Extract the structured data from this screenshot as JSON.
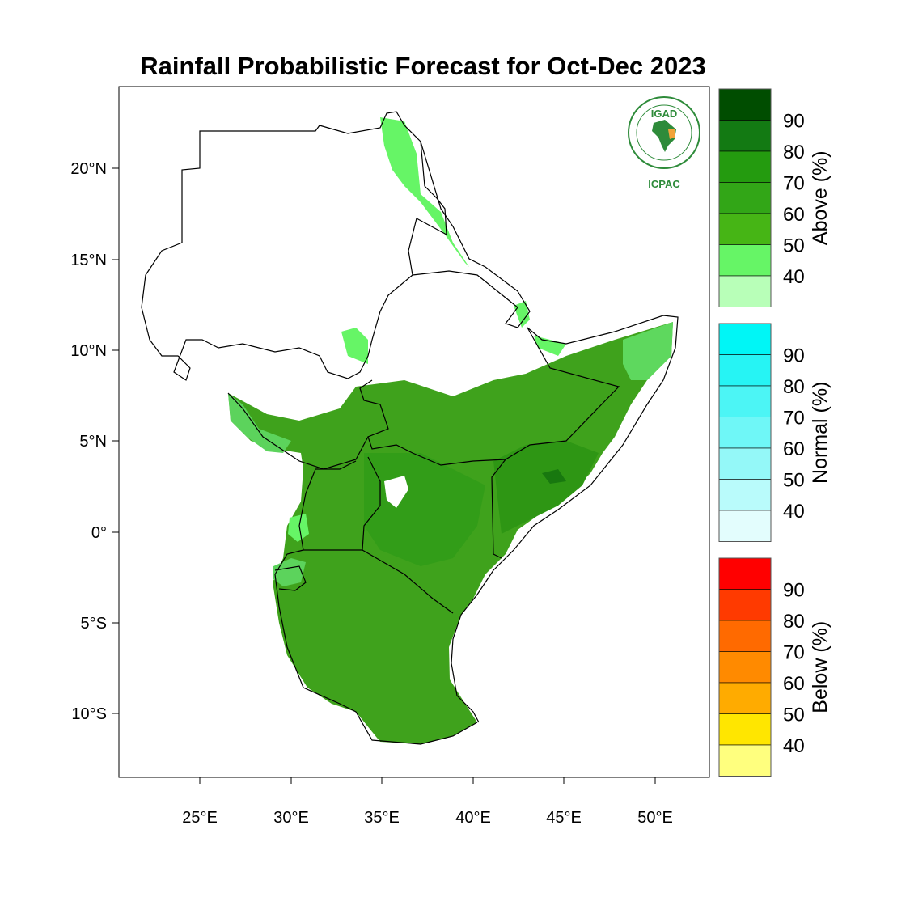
{
  "title": "Rainfall Probabilistic Forecast for Oct-Dec 2023",
  "lat_ticks": [
    "20°N",
    "15°N",
    "10°N",
    "5°N",
    "0°",
    "5°S",
    "10°S"
  ],
  "lon_ticks": [
    "25°E",
    "30°E",
    "35°E",
    "40°E",
    "45°E",
    "50°E"
  ],
  "colorbars": [
    {
      "label": "Above (%)",
      "ticks": [
        "90",
        "80",
        "70",
        "60",
        "50",
        "40"
      ],
      "colors": [
        "#004d00",
        "#137a13",
        "#249b0f",
        "#32a617",
        "#46b515",
        "#66f566",
        "#b8ffb8"
      ]
    },
    {
      "label": "Normal (%)",
      "ticks": [
        "90",
        "80",
        "70",
        "60",
        "50",
        "40"
      ],
      "colors": [
        "#00f6f6",
        "#26f4f4",
        "#4cf5f5",
        "#6ff7f7",
        "#94f8f8",
        "#b9fbfb",
        "#e3fdfd"
      ]
    },
    {
      "label": "Below (%)",
      "ticks": [
        "90",
        "80",
        "70",
        "60",
        "50",
        "40"
      ],
      "colors": [
        "#ff0000",
        "#ff3a00",
        "#ff6a00",
        "#ff8a00",
        "#ffab00",
        "#ffe600",
        "#ffff7e"
      ]
    }
  ],
  "logo": {
    "top_text": "IGAD",
    "bottom_text": "ICPAC"
  },
  "colors": {
    "above": "#3fa21c",
    "above_light": "#66f566",
    "land_white": "#ffffff",
    "border": "#000000"
  }
}
